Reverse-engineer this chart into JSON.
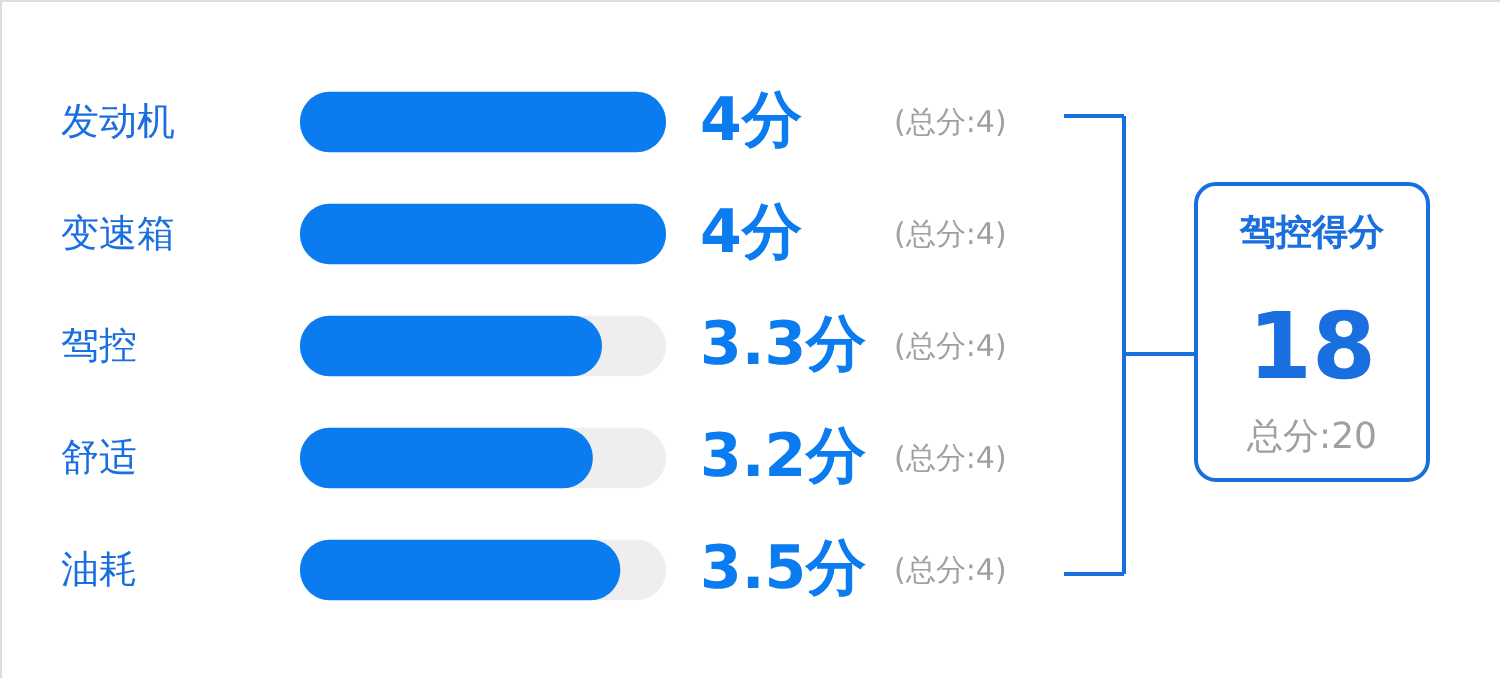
{
  "chart_data": {
    "type": "bar",
    "orientation": "horizontal",
    "categories": [
      "发动机",
      "变速箱",
      "驾控",
      "舒适",
      "油耗"
    ],
    "series": [
      {
        "color": "#0a7cf0",
        "values": [
          4,
          4,
          3.3,
          3.2,
          3.5
        ],
        "value_labels": [
          "4分",
          "4分",
          "3.3分",
          "3.2分",
          "3.5分"
        ]
      }
    ],
    "xlim": [
      0,
      4
    ],
    "tick_labels": "y",
    "grid": false,
    "legend": false,
    "annotations": [
      "(总分:4)",
      "(总分:4)",
      "(总分:4)",
      "(总分:4)",
      "(总分:4)",
      "驾控得分",
      "18",
      "总分:20"
    ]
  }
}
